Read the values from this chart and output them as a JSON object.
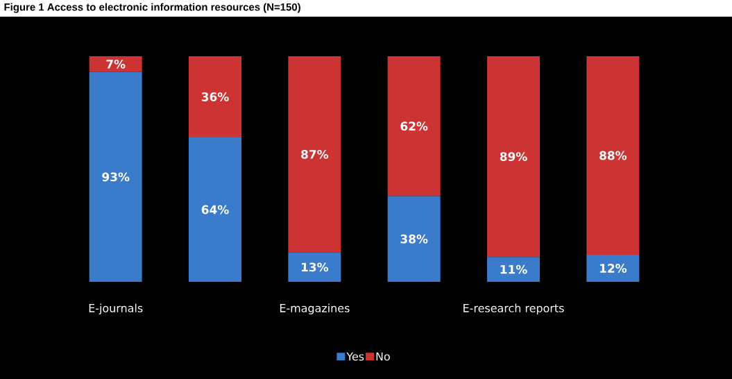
{
  "chart_data": {
    "type": "bar",
    "stacked": true,
    "title": "Figure 1 Access to electronic information resources (N=150)",
    "categories": [
      "E-journals",
      null,
      "E-magazines",
      null,
      "E-research reports",
      null
    ],
    "series": [
      {
        "name": "Yes",
        "color": "#3b7bcc",
        "values": [
          93,
          64,
          13,
          38,
          11,
          12
        ],
        "value_labels": [
          "93%",
          "64%",
          "13%",
          "38%",
          "11%",
          "12%"
        ]
      },
      {
        "name": "No",
        "color": "#cc3333",
        "values": [
          7,
          36,
          87,
          62,
          89,
          88
        ],
        "value_labels": [
          "7%",
          "36%",
          "87%",
          "62%",
          "89%",
          "88%"
        ]
      }
    ],
    "legend": "bottom"
  }
}
